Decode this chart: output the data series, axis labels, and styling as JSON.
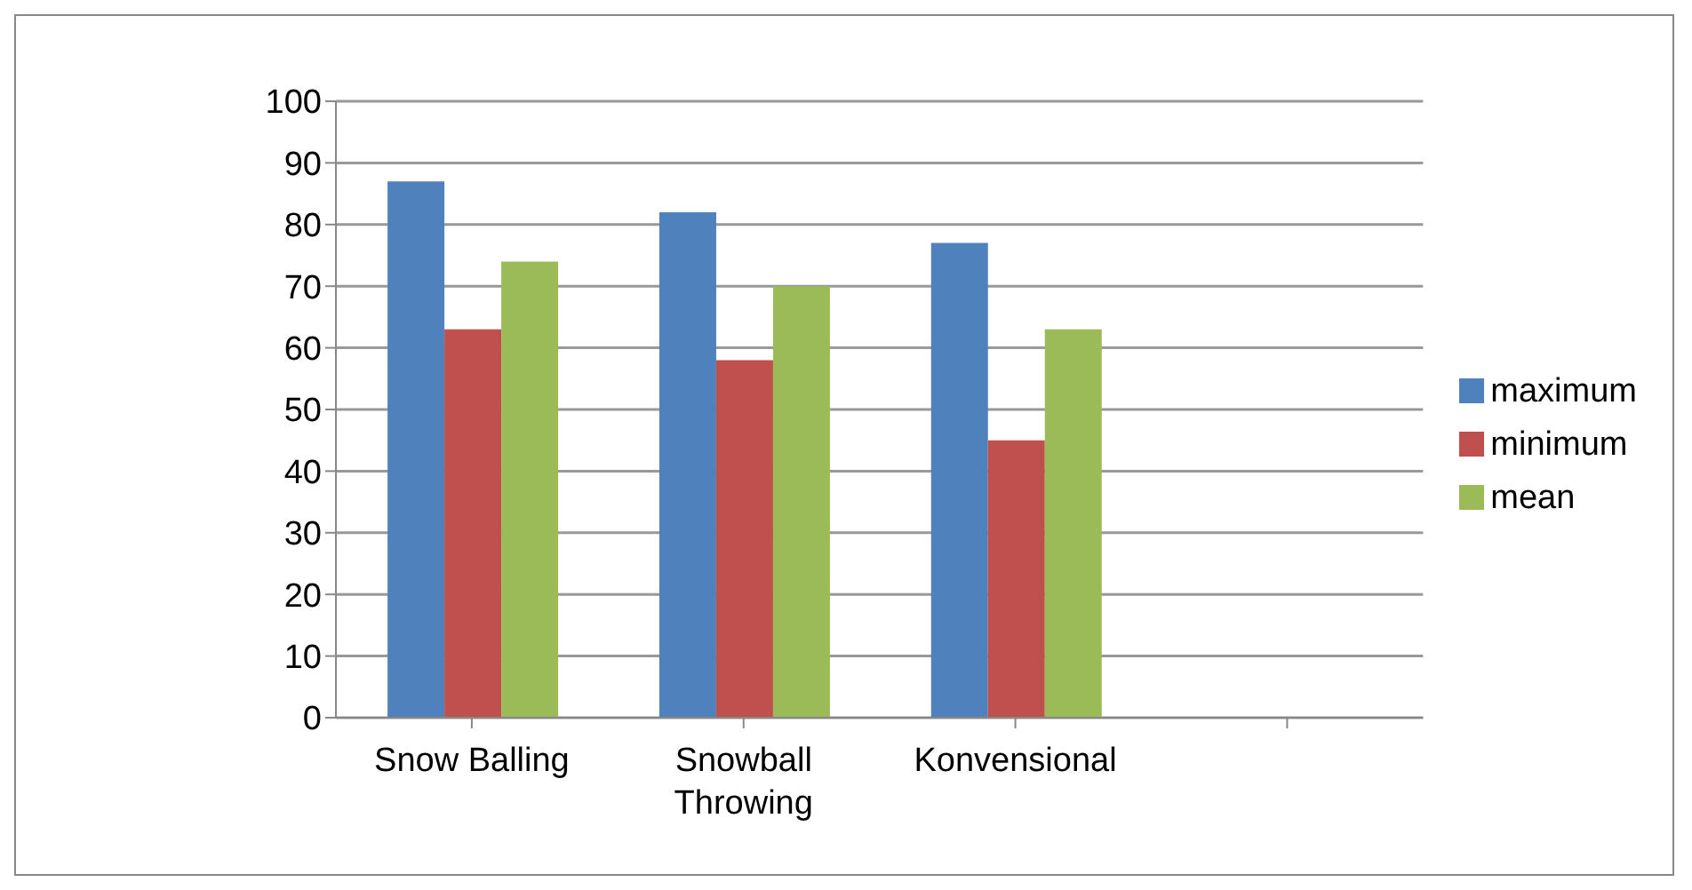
{
  "chart_data": {
    "type": "bar",
    "categories": [
      "Snow Balling",
      "Snowball Throwing",
      "Konvensional",
      null
    ],
    "series": [
      {
        "name": "maximum",
        "color": "#4f81bd",
        "values": [
          87,
          82,
          77,
          null
        ]
      },
      {
        "name": "minimum",
        "color": "#c0504d",
        "values": [
          63,
          58,
          45,
          null
        ]
      },
      {
        "name": "mean",
        "color": "#9bbb59",
        "values": [
          74,
          70,
          63,
          null
        ]
      }
    ],
    "ylim": [
      0,
      100
    ],
    "yticks": [
      0,
      10,
      20,
      30,
      40,
      50,
      60,
      70,
      80,
      90,
      100
    ],
    "grid": "y",
    "legend": "right"
  }
}
